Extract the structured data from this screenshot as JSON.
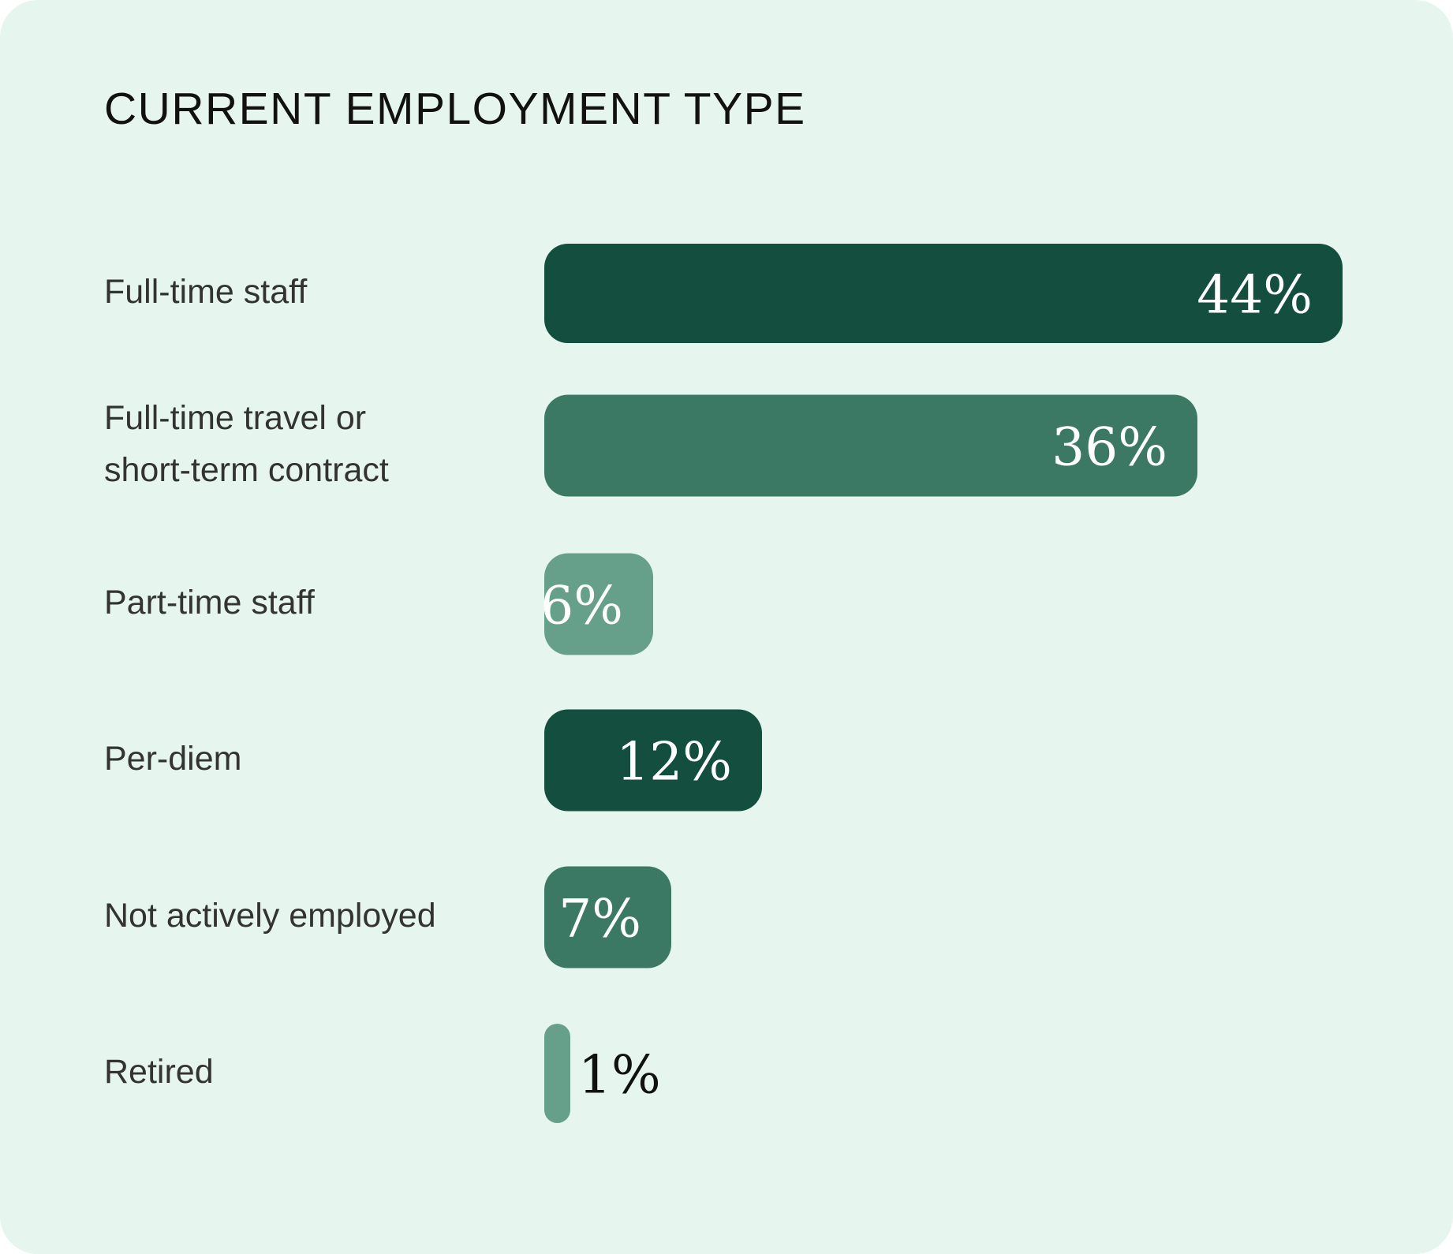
{
  "chart_data": {
    "type": "bar",
    "orientation": "horizontal",
    "title": "CURRENT EMPLOYMENT TYPE",
    "categories": [
      "Full-time staff",
      "Full-time travel or short-term contract",
      "Part-time staff",
      "Per-diem",
      "Not actively employed",
      "Retired"
    ],
    "category_lines": [
      [
        "Full-time staff"
      ],
      [
        "Full-time travel or",
        "short-term contract"
      ],
      [
        "Part-time staff"
      ],
      [
        "Per-diem"
      ],
      [
        "Not actively employed"
      ],
      [
        "Retired"
      ]
    ],
    "values": [
      44,
      36,
      6,
      12,
      7,
      1
    ],
    "value_labels": [
      "44%",
      "36%",
      "6%",
      "12%",
      "7%",
      "1%"
    ],
    "unit": "%",
    "bar_colors": [
      "#134e3e",
      "#3c7964",
      "#66a08a",
      "#134e3e",
      "#3c7964",
      "#66a08a"
    ],
    "value_label_color_inside": "#ffffff",
    "value_label_color_outside": "#111111",
    "background": "#e6f6ef",
    "xlabel": "",
    "ylabel": "",
    "grid": false,
    "legend": false
  }
}
